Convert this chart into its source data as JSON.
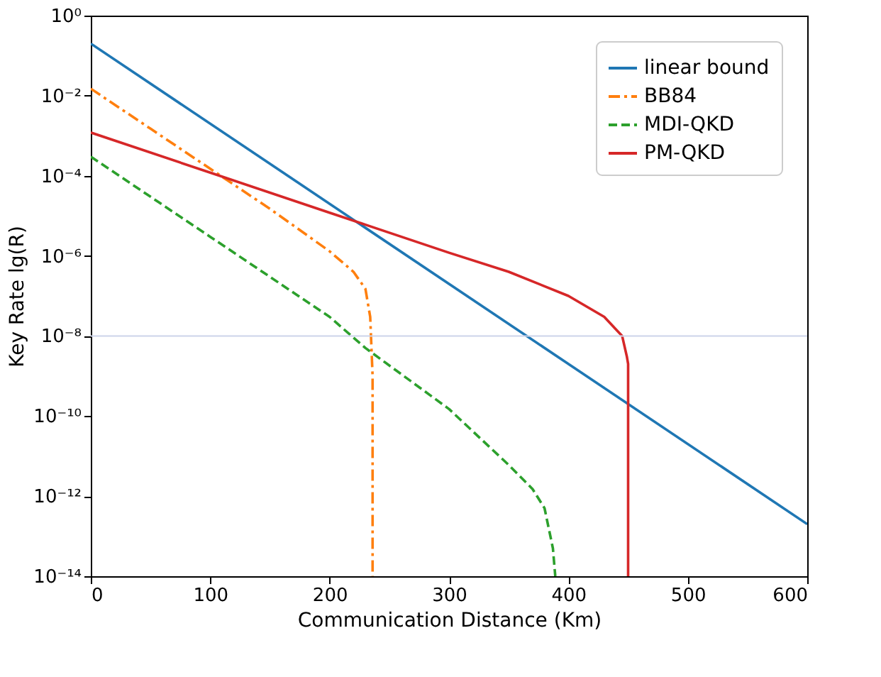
{
  "chart_data": {
    "type": "line",
    "xlabel": "Communication Distance (Km)",
    "ylabel": "Key Rate lg(R)",
    "log": "y",
    "xlim": [
      0,
      600
    ],
    "xticks": [
      0,
      100,
      200,
      300,
      400,
      500,
      600
    ],
    "ylim": [
      1e-14,
      1
    ],
    "yticks": [
      {
        "value": 1,
        "label": "10⁰"
      },
      {
        "value": 0.01,
        "label": "10⁻²"
      },
      {
        "value": 0.0001,
        "label": "10⁻⁴"
      },
      {
        "value": 1e-06,
        "label": "10⁻⁶"
      },
      {
        "value": 1e-08,
        "label": "10⁻⁸"
      },
      {
        "value": 1e-10,
        "label": "10⁻¹⁰"
      },
      {
        "value": 1e-12,
        "label": "10⁻¹²"
      },
      {
        "value": 1e-14,
        "label": "10⁻¹⁴"
      }
    ],
    "legend": "top right",
    "grid": false,
    "ref_lines": [
      {
        "axis": "y",
        "value": 1e-08,
        "color": "#ccd4ea"
      }
    ],
    "series": [
      {
        "name": "linear bound",
        "color": "#1f77b4",
        "line_style": "solid",
        "x": [
          0,
          600
        ],
        "values": [
          0.2,
          2e-13
        ]
      },
      {
        "name": "BB84",
        "color": "#ff7f0e",
        "line_style": "dashdot",
        "x": [
          0,
          50,
          100,
          150,
          200,
          220,
          230,
          234,
          236,
          236
        ],
        "values": [
          0.015,
          0.0015,
          0.00015,
          1.5e-05,
          1.3e-06,
          4e-07,
          1.5e-07,
          3e-08,
          1e-09,
          1e-14
        ]
      },
      {
        "name": "MDI-QKD",
        "color": "#2ca02c",
        "line_style": "dashed",
        "x": [
          0,
          100,
          200,
          230,
          300,
          350,
          370,
          380,
          387,
          389
        ],
        "values": [
          0.0003,
          3e-06,
          3e-08,
          5e-09,
          1.5e-10,
          6e-12,
          1.5e-12,
          5e-13,
          5e-14,
          1e-14
        ]
      },
      {
        "name": "PM-QKD",
        "color": "#d62728",
        "line_style": "solid",
        "x": [
          0,
          100,
          200,
          230,
          300,
          350,
          400,
          430,
          445,
          449,
          450,
          450
        ],
        "values": [
          0.0012,
          0.00012,
          1.2e-05,
          6e-06,
          1.2e-06,
          4e-07,
          1e-07,
          3e-08,
          1e-08,
          3e-09,
          2e-09,
          1e-14
        ]
      }
    ]
  }
}
